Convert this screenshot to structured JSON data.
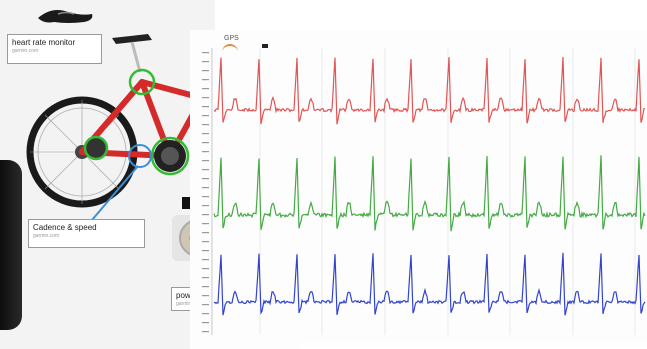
{
  "left_panel": {
    "heart_rate_label": "heart rate monitor",
    "heart_rate_source": "garmin.com",
    "cadence_label": "Cadence & speed",
    "cadence_source": "garmin.com",
    "power_label": "powe",
    "power_source": "garmin.com"
  },
  "chart_panel": {
    "gps_label": "GPS",
    "trace_colors": [
      "#e05555",
      "#44aa44",
      "#3344cc"
    ]
  }
}
